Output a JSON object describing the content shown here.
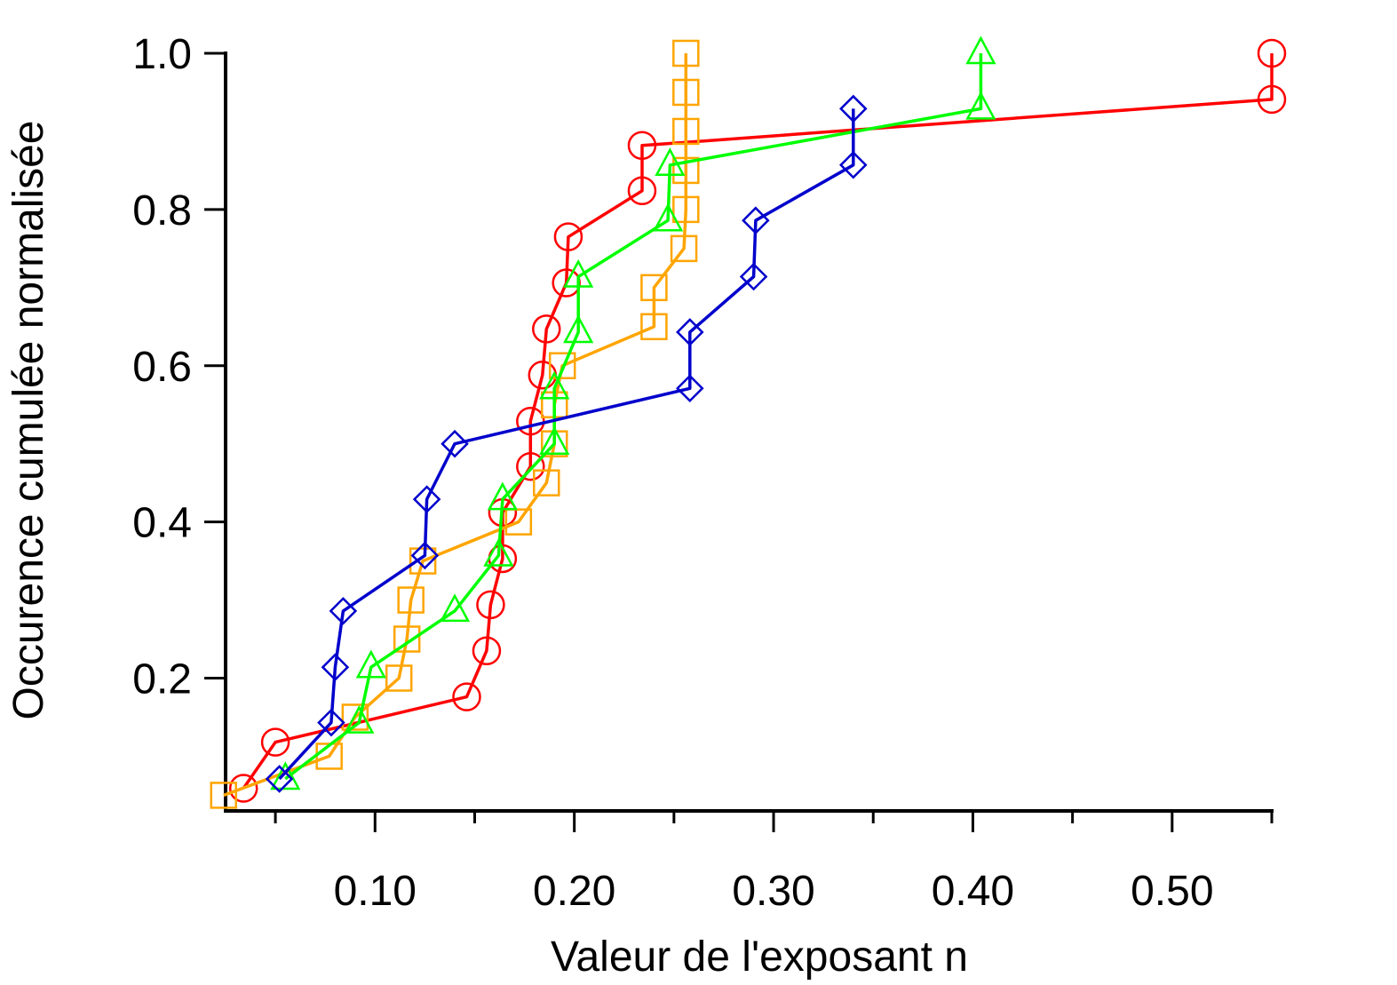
{
  "chart_data": {
    "type": "line",
    "title": "",
    "xlabel": "Valeur de l'exposant n",
    "ylabel": "Occurence cumulée normalisée",
    "xlim": [
      0.025,
      0.55
    ],
    "ylim": [
      0.03,
      1.0
    ],
    "x_ticks": [
      {
        "value": 0.1,
        "label": "0.10"
      },
      {
        "value": 0.2,
        "label": "0.20"
      },
      {
        "value": 0.3,
        "label": "0.30"
      },
      {
        "value": 0.4,
        "label": "0.40"
      },
      {
        "value": 0.5,
        "label": "0.50"
      }
    ],
    "x_minor_ticks": [
      0.05,
      0.15,
      0.25,
      0.35,
      0.45,
      0.55
    ],
    "y_ticks": [
      {
        "value": 0.2,
        "label": "0.2"
      },
      {
        "value": 0.4,
        "label": "0.4"
      },
      {
        "value": 0.6,
        "label": "0.6"
      },
      {
        "value": 0.8,
        "label": "0.8"
      },
      {
        "value": 1.0,
        "label": "1.0"
      }
    ],
    "grid": false,
    "legend": "none",
    "series": [
      {
        "color": "#ff0000",
        "marker": "circle",
        "points": [
          [
            0.034,
            0.059
          ],
          [
            0.05,
            0.118
          ],
          [
            0.146,
            0.176
          ],
          [
            0.156,
            0.235
          ],
          [
            0.158,
            0.294
          ],
          [
            0.164,
            0.353
          ],
          [
            0.164,
            0.412
          ],
          [
            0.178,
            0.471
          ],
          [
            0.178,
            0.529
          ],
          [
            0.184,
            0.588
          ],
          [
            0.186,
            0.647
          ],
          [
            0.196,
            0.706
          ],
          [
            0.197,
            0.765
          ],
          [
            0.234,
            0.824
          ],
          [
            0.234,
            0.882
          ],
          [
            0.55,
            0.941
          ],
          [
            0.55,
            1.0
          ]
        ]
      },
      {
        "color": "#ffa500",
        "marker": "square",
        "points": [
          [
            0.024,
            0.05
          ],
          [
            0.077,
            0.1
          ],
          [
            0.09,
            0.15
          ],
          [
            0.112,
            0.2
          ],
          [
            0.116,
            0.25
          ],
          [
            0.118,
            0.3
          ],
          [
            0.124,
            0.35
          ],
          [
            0.172,
            0.4
          ],
          [
            0.186,
            0.45
          ],
          [
            0.19,
            0.5
          ],
          [
            0.19,
            0.55
          ],
          [
            0.194,
            0.6
          ],
          [
            0.24,
            0.65
          ],
          [
            0.24,
            0.7
          ],
          [
            0.255,
            0.75
          ],
          [
            0.256,
            0.8
          ],
          [
            0.256,
            0.85
          ],
          [
            0.256,
            0.9
          ],
          [
            0.256,
            0.95
          ],
          [
            0.256,
            1.0
          ]
        ]
      },
      {
        "color": "#00ff00",
        "marker": "triangle",
        "points": [
          [
            0.055,
            0.071
          ],
          [
            0.092,
            0.143
          ],
          [
            0.098,
            0.214
          ],
          [
            0.14,
            0.286
          ],
          [
            0.162,
            0.357
          ],
          [
            0.164,
            0.429
          ],
          [
            0.19,
            0.5
          ],
          [
            0.19,
            0.571
          ],
          [
            0.202,
            0.643
          ],
          [
            0.202,
            0.714
          ],
          [
            0.247,
            0.786
          ],
          [
            0.248,
            0.857
          ],
          [
            0.404,
            0.929
          ],
          [
            0.404,
            1.0
          ]
        ]
      },
      {
        "color": "#0000cc",
        "marker": "diamond",
        "points": [
          [
            0.052,
            0.071
          ],
          [
            0.078,
            0.143
          ],
          [
            0.08,
            0.214
          ],
          [
            0.084,
            0.286
          ],
          [
            0.125,
            0.357
          ],
          [
            0.126,
            0.429
          ],
          [
            0.14,
            0.5
          ],
          [
            0.258,
            0.571
          ],
          [
            0.258,
            0.643
          ],
          [
            0.29,
            0.714
          ],
          [
            0.291,
            0.786
          ],
          [
            0.34,
            0.857
          ],
          [
            0.34,
            0.929
          ]
        ]
      }
    ]
  }
}
